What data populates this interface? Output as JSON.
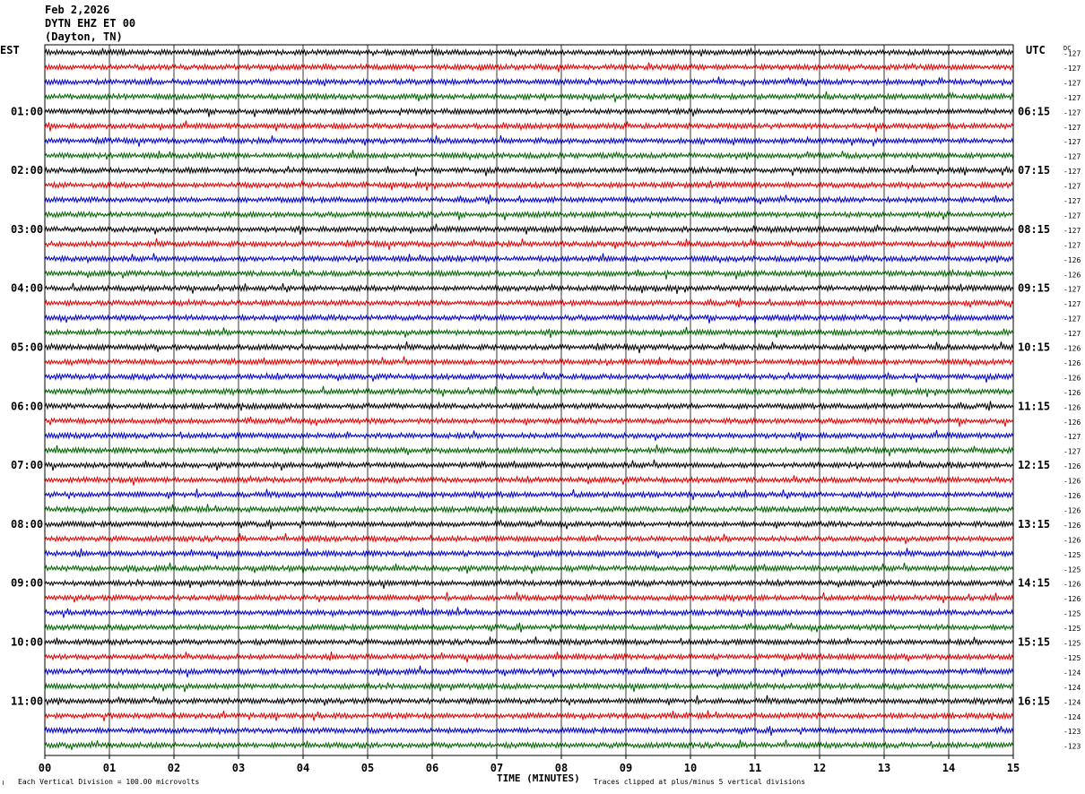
{
  "header": {
    "date": "Feb 2,2026",
    "station": "DYTN EHZ ET 00",
    "location": "(Dayton, TN)"
  },
  "left_axis_label": "EST",
  "right_axis_label": "UTC",
  "dc_label": "DC",
  "footer": {
    "scale_note": "Each Vertical Division = 100.00 microvolts",
    "clip_note": "Traces clipped at plus/minus 5 vertical divisions",
    "corner_mark": "≀"
  },
  "chart_data": {
    "type": "line",
    "xlabel": "TIME (MINUTES)",
    "x_ticks": [
      "00",
      "01",
      "02",
      "03",
      "04",
      "05",
      "06",
      "07",
      "08",
      "09",
      "10",
      "11",
      "12",
      "13",
      "14",
      "15"
    ],
    "xlim": [
      0,
      15
    ],
    "left_hour_labels": [
      "01:00",
      "02:00",
      "03:00",
      "04:00",
      "05:00",
      "06:00",
      "07:00",
      "08:00",
      "09:00",
      "10:00",
      "11:00"
    ],
    "right_hour_labels": [
      "06:15",
      "07:15",
      "08:15",
      "09:15",
      "10:15",
      "11:15",
      "12:15",
      "13:15",
      "14:15",
      "15:15",
      "16:15"
    ],
    "trace_colors": [
      "#000000",
      "#e00000",
      "#0000c8",
      "#006400"
    ],
    "trace_count": 48,
    "dc_offsets": [
      -127,
      -127,
      -127,
      -127,
      -127,
      -127,
      -127,
      -127,
      -127,
      -127,
      -127,
      -127,
      -127,
      -127,
      -126,
      -126,
      -127,
      -127,
      -127,
      -127,
      -126,
      -126,
      -126,
      -126,
      -126,
      -126,
      -127,
      -127,
      -126,
      -126,
      -126,
      -126,
      -126,
      -126,
      -125,
      -125,
      -126,
      -126,
      -125,
      -125,
      -125,
      -125,
      -124,
      -124,
      -124,
      -124,
      -123,
      -123
    ]
  }
}
